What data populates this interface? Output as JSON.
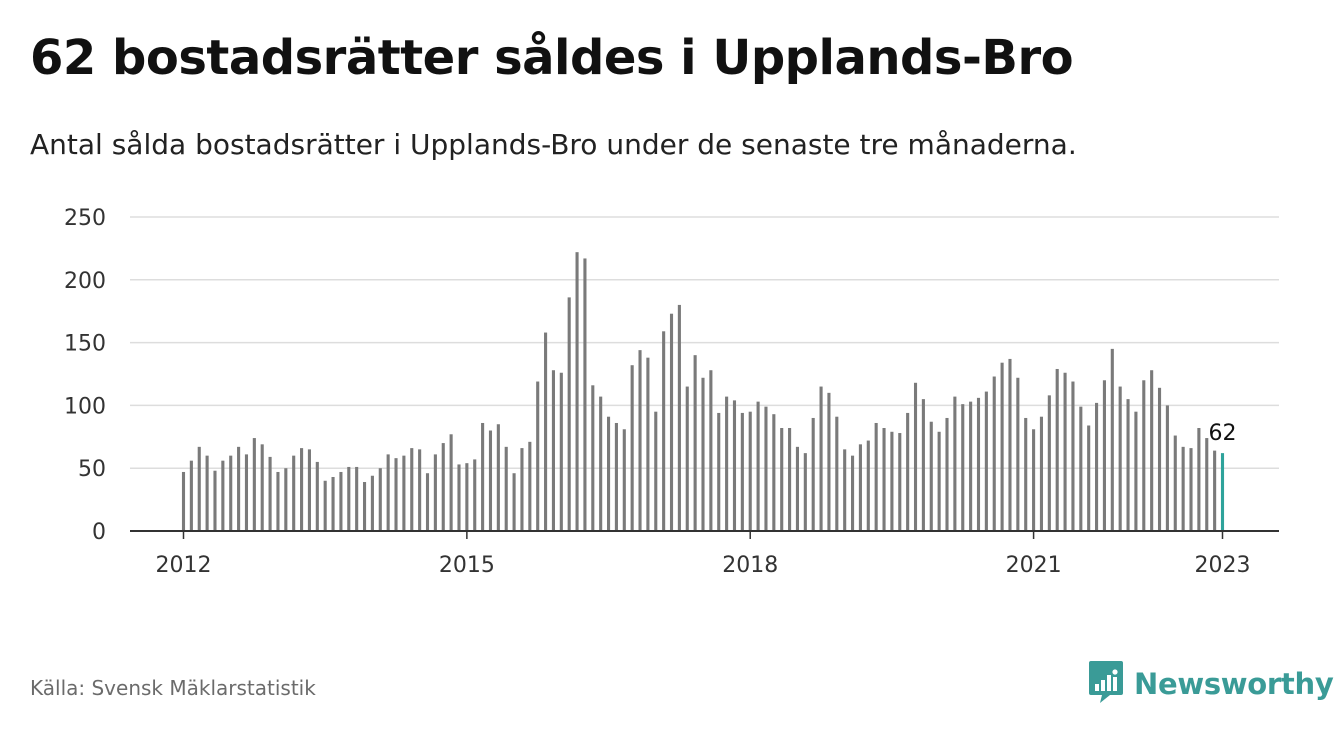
{
  "title": "62 bostadsrätter såldes i Upplands-Bro",
  "subtitle": "Antal sålda bostadsrätter i Upplands-Bro under de senaste tre månaderna.",
  "source": "Källa: Svensk Mäklarstatistik",
  "logo": {
    "text": "Newsworthy",
    "icon": "newsworthy-chart-bubble-icon"
  },
  "colors": {
    "bar": "#7a7a7a",
    "highlight": "#2ea39b",
    "grid": "#dddddd",
    "axis": "#333333",
    "brand": "#3a9b97"
  },
  "chart_data": {
    "type": "bar",
    "title": "62 bostadsrätter såldes i Upplands-Bro",
    "subtitle": "Antal sålda bostadsrätter i Upplands-Bro under de senaste tre månaderna.",
    "xlabel": "",
    "ylabel": "",
    "ylim": [
      0,
      250
    ],
    "yticks": [
      0,
      50,
      100,
      150,
      200,
      250
    ],
    "grid": true,
    "x_ticks": [
      "2012",
      "2015",
      "2018",
      "2021",
      "2023"
    ],
    "x_tick_index": [
      0,
      36,
      72,
      108,
      132
    ],
    "start_label": "2012",
    "highlight_label": "62",
    "values": [
      47,
      56,
      67,
      60,
      48,
      56,
      60,
      67,
      61,
      74,
      69,
      59,
      47,
      50,
      60,
      66,
      65,
      55,
      40,
      43,
      47,
      51,
      51,
      39,
      44,
      50,
      61,
      58,
      60,
      66,
      65,
      46,
      61,
      70,
      77,
      53,
      54,
      57,
      86,
      80,
      85,
      67,
      46,
      66,
      71,
      119,
      158,
      128,
      126,
      186,
      222,
      217,
      116,
      107,
      91,
      86,
      81,
      132,
      144,
      138,
      95,
      159,
      173,
      180,
      115,
      140,
      122,
      128,
      94,
      107,
      104,
      94,
      95,
      103,
      99,
      93,
      82,
      82,
      67,
      62,
      90,
      115,
      110,
      91,
      65,
      60,
      69,
      72,
      86,
      82,
      79,
      78,
      94,
      118,
      105,
      87,
      79,
      90,
      107,
      101,
      103,
      106,
      111,
      123,
      134,
      137,
      122,
      90,
      81,
      91,
      108,
      129,
      126,
      119,
      99,
      84,
      102,
      120,
      145,
      115,
      105,
      95,
      120,
      128,
      114,
      100,
      76,
      67,
      66,
      82,
      74,
      64,
      62
    ]
  }
}
